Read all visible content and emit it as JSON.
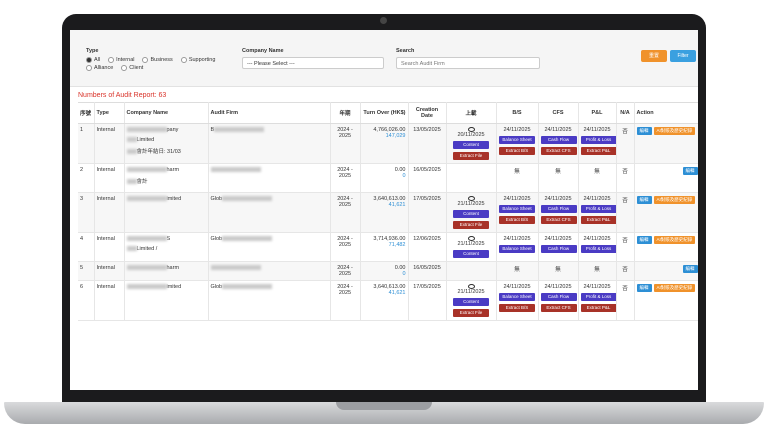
{
  "filters": {
    "type_label": "Type",
    "type_options": [
      "All",
      "Internal",
      "Business",
      "Supporting",
      "Alliance",
      "Client"
    ],
    "company_label": "Company Name",
    "company_placeholder": "--- Please Select ---",
    "search_label": "Search",
    "search_placeholder": "Search Audit Firm",
    "reset_button": "重置",
    "filter_button": "Filter"
  },
  "report_count": "Numbers of Audit Report: 63",
  "table": {
    "headers": [
      "序號",
      "Type",
      "Company Name",
      "Audit Firm",
      "年期",
      "Turn Over (HK$)",
      "Creation Date",
      "上載",
      "B/S",
      "CFS",
      "P&L",
      "N/A",
      "Action"
    ],
    "rows": [
      {
        "no": "1",
        "type": "Internal",
        "company": [
          "pany",
          "Limited",
          "會計年結日: 31/03"
        ],
        "firm": "B",
        "year": "2024 - 2025",
        "turnover": "4,766,026.00",
        "turnover_link": "147,029",
        "date": "13/05/2025",
        "upload": {
          "date": "20/11/2025",
          "buttons": [
            "Content",
            "Extract File"
          ]
        },
        "bs": {
          "date": "24/11/2025",
          "buttons": [
            "Balance Sheet",
            "Extract B/S"
          ]
        },
        "cfs": {
          "date": "24/11/2025",
          "buttons": [
            "Cash Flow",
            "Extract CFS"
          ]
        },
        "pl": {
          "date": "24/11/2025",
          "buttons": [
            "Profit & Loss",
            "Extract P&L"
          ]
        },
        "na": "否",
        "actions": [
          "編輯",
          "AI對賬及歷史紀錄"
        ]
      },
      {
        "no": "2",
        "type": "Internal",
        "company": [
          "harm",
          "會計"
        ],
        "firm": "",
        "year": "2024 - 2025",
        "turnover": "0.00",
        "turnover_link": "0",
        "date": "16/05/2025",
        "upload": null,
        "bs": {
          "text": "無"
        },
        "cfs": {
          "text": "無"
        },
        "pl": {
          "text": "無"
        },
        "na": "否",
        "actions": [
          "編輯"
        ]
      },
      {
        "no": "3",
        "type": "Internal",
        "company": [
          "imited"
        ],
        "firm": "Glob",
        "year": "2024 - 2025",
        "turnover": "3,640,613.00",
        "turnover_link": "41,621",
        "date": "17/05/2025",
        "upload": {
          "date": "21/11/2025",
          "buttons": [
            "Content",
            "Extract File"
          ]
        },
        "bs": {
          "date": "24/11/2025",
          "buttons": [
            "Balance Sheet",
            "Extract B/S"
          ]
        },
        "cfs": {
          "date": "24/11/2025",
          "buttons": [
            "Cash Flow",
            "Extract CFS"
          ]
        },
        "pl": {
          "date": "24/11/2025",
          "buttons": [
            "Profit & Loss",
            "Extract P&L"
          ]
        },
        "na": "否",
        "actions": [
          "編輯",
          "AI對賬及歷史紀錄"
        ]
      },
      {
        "no": "4",
        "type": "Internal",
        "company": [
          "S",
          "Limited /"
        ],
        "firm": "Glob",
        "year": "2024 - 2025",
        "turnover": "3,714,936.00",
        "turnover_link": "71,482",
        "date": "12/06/2025",
        "upload": {
          "date": "21/11/2025",
          "buttons": [
            "Content"
          ]
        },
        "bs": {
          "date": "24/11/2025",
          "buttons": [
            "Balance Sheet"
          ]
        },
        "cfs": {
          "date": "24/11/2025",
          "buttons": [
            "Cash Flow"
          ]
        },
        "pl": {
          "date": "24/11/2025",
          "buttons": [
            "Profit & Loss"
          ]
        },
        "na": "否",
        "actions": [
          "編輯",
          "AI對賬及歷史紀錄"
        ]
      },
      {
        "no": "5",
        "type": "Internal",
        "company": [
          "harm"
        ],
        "firm": "",
        "year": "2024 - 2025",
        "turnover": "0.00",
        "turnover_link": "0",
        "date": "16/05/2025",
        "upload": null,
        "bs": {
          "text": "無"
        },
        "cfs": {
          "text": "無"
        },
        "pl": {
          "text": "無"
        },
        "na": "否",
        "actions": [
          "編輯"
        ]
      },
      {
        "no": "6",
        "type": "Internal",
        "company": [
          "imited"
        ],
        "firm": "Glob",
        "year": "2024 - 2025",
        "turnover": "3,640,613.00",
        "turnover_link": "41,621",
        "date": "17/05/2025",
        "upload": {
          "date": "21/11/2025",
          "buttons": [
            "Content",
            "Extract File"
          ]
        },
        "bs": {
          "date": "24/11/2025",
          "buttons": [
            "Balance Sheet",
            "Extract B/S"
          ]
        },
        "cfs": {
          "date": "24/11/2025",
          "buttons": [
            "Cash Flow",
            "Extract CFS"
          ]
        },
        "pl": {
          "date": "24/11/2025",
          "buttons": [
            "Profit & Loss",
            "Extract P&L"
          ]
        },
        "na": "否",
        "actions": [
          "編輯",
          "AI對賬及歷史紀錄"
        ]
      }
    ]
  }
}
